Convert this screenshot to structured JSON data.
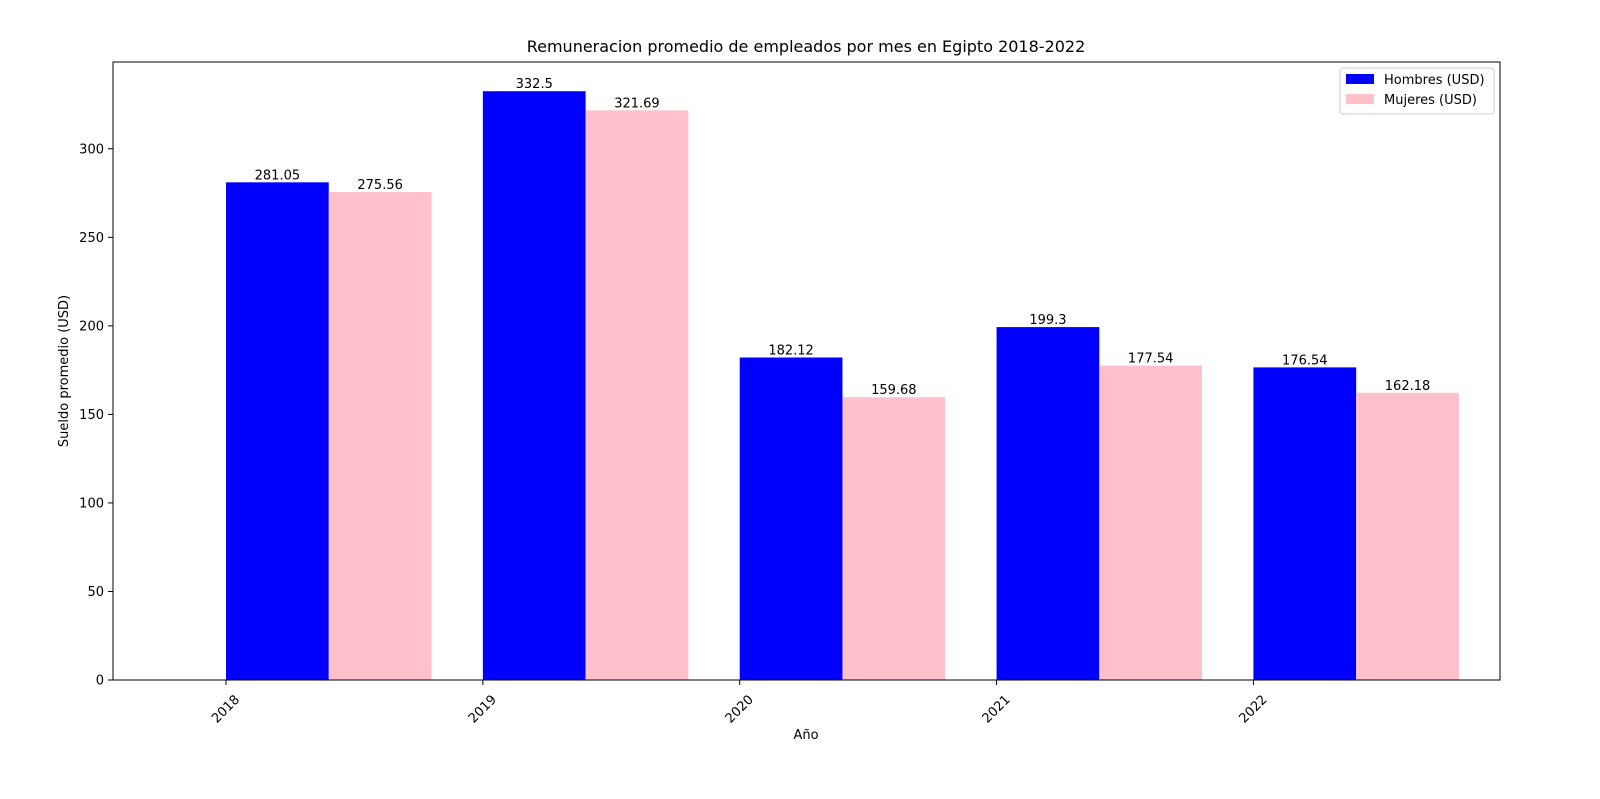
{
  "chart_data": {
    "type": "bar",
    "title": "Remuneracion promedio de empleados por mes en Egipto 2018-2022",
    "xlabel": "Año",
    "ylabel": "Sueldo promedio (USD)",
    "categories": [
      "2018",
      "2019",
      "2020",
      "2021",
      "2022"
    ],
    "series": [
      {
        "name": "Hombres (USD)",
        "color": "#0000ff",
        "values": [
          281.05,
          332.5,
          182.12,
          199.3,
          176.54
        ]
      },
      {
        "name": "Mujeres (USD)",
        "color": "#ffc0cb",
        "values": [
          275.56,
          321.69,
          159.68,
          177.54,
          162.18
        ]
      }
    ],
    "value_labels": [
      [
        "281.05",
        "332.5",
        "182.12",
        "199.3",
        "176.54"
      ],
      [
        "275.56",
        "321.69",
        "159.68",
        "177.54",
        "162.18"
      ]
    ],
    "yticks": [
      0,
      50,
      100,
      150,
      200,
      250,
      300
    ],
    "ytick_labels": [
      "0",
      "50",
      "100",
      "150",
      "200",
      "250",
      "300"
    ],
    "ylim": [
      0,
      349
    ],
    "grid": false,
    "legend_position": "top-right",
    "xtick_rotation": "45 degrees"
  }
}
